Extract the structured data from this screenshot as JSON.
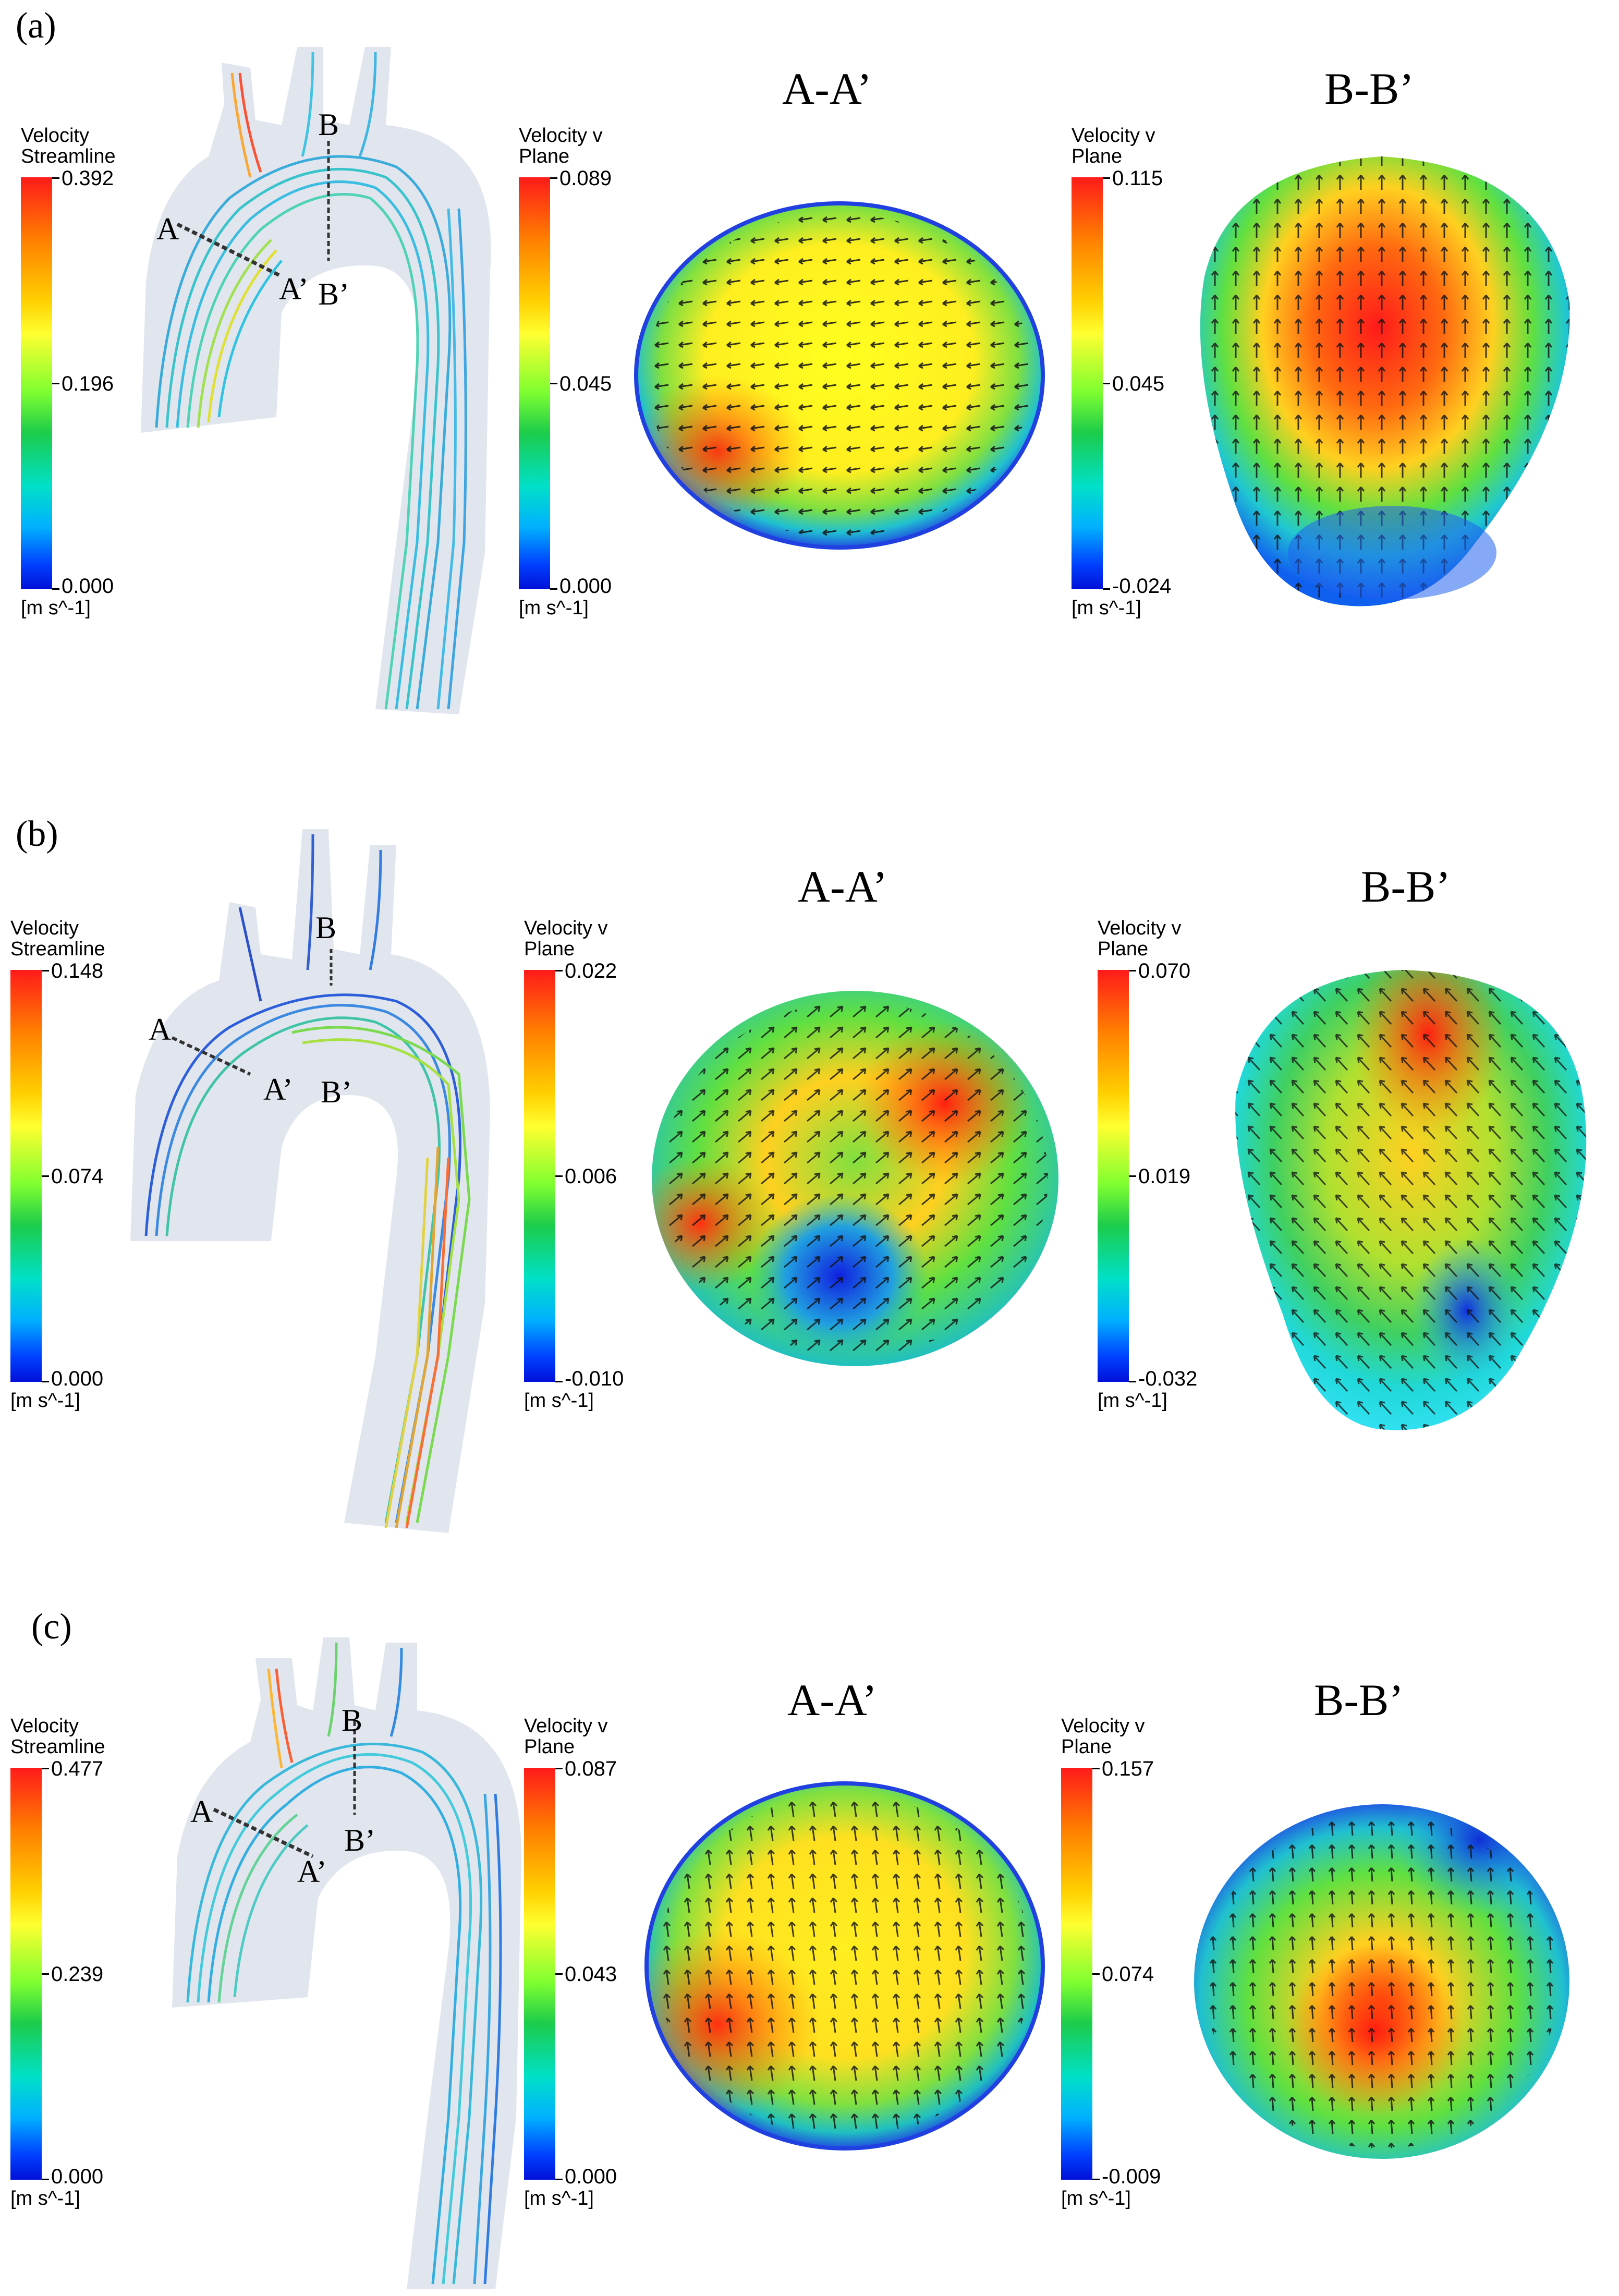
{
  "rows": [
    {
      "label": "(a)",
      "streamline_legend": {
        "title": "Velocity",
        "subtitle": "Streamline",
        "max": "0.392",
        "mid": "0.196",
        "min": "0.000",
        "unit": "[m s^-1]"
      },
      "marks": {
        "a": "A",
        "a_prime": "A’",
        "b": "B",
        "b_prime": "B’"
      },
      "sections": [
        {
          "title": "A-A’",
          "legend": {
            "title": "Velocity v",
            "subtitle": "Plane",
            "max": "0.089",
            "mid": "0.045",
            "min": "0.000",
            "unit": "[m s^-1]"
          }
        },
        {
          "title": "B-B’",
          "legend": {
            "title": "Velocity v",
            "subtitle": "Plane",
            "max": "0.115",
            "mid": "0.045",
            "min": "-0.024",
            "unit": "[m s^-1]"
          }
        }
      ]
    },
    {
      "label": "(b)",
      "streamline_legend": {
        "title": "Velocity",
        "subtitle": "Streamline",
        "max": "0.148",
        "mid": "0.074",
        "min": "0.000",
        "unit": "[m s^-1]"
      },
      "marks": {
        "a": "A",
        "a_prime": "A’",
        "b": "B",
        "b_prime": "B’"
      },
      "sections": [
        {
          "title": "A-A’",
          "legend": {
            "title": "Velocity v",
            "subtitle": "Plane",
            "max": "0.022",
            "mid": "0.006",
            "min": "-0.010",
            "unit": "[m s^-1]"
          }
        },
        {
          "title": "B-B’",
          "legend": {
            "title": "Velocity v",
            "subtitle": "Plane",
            "max": "0.070",
            "mid": "0.019",
            "min": "-0.032",
            "unit": "[m s^-1]"
          }
        }
      ]
    },
    {
      "label": "(c)",
      "streamline_legend": {
        "title": "Velocity",
        "subtitle": "Streamline",
        "max": "0.477",
        "mid": "0.239",
        "min": "0.000",
        "unit": "[m s^-1]"
      },
      "marks": {
        "a": "A",
        "a_prime": "A’",
        "b": "B",
        "b_prime": "B’"
      },
      "sections": [
        {
          "title": "A-A’",
          "legend": {
            "title": "Velocity v",
            "subtitle": "Plane",
            "max": "0.087",
            "mid": "0.043",
            "min": "0.000",
            "unit": "[m s^-1]"
          }
        },
        {
          "title": "B-B’",
          "legend": {
            "title": "Velocity v",
            "subtitle": "Plane",
            "max": "0.157",
            "mid": "0.074",
            "min": "-0.009",
            "unit": "[m s^-1]"
          }
        }
      ]
    }
  ]
}
